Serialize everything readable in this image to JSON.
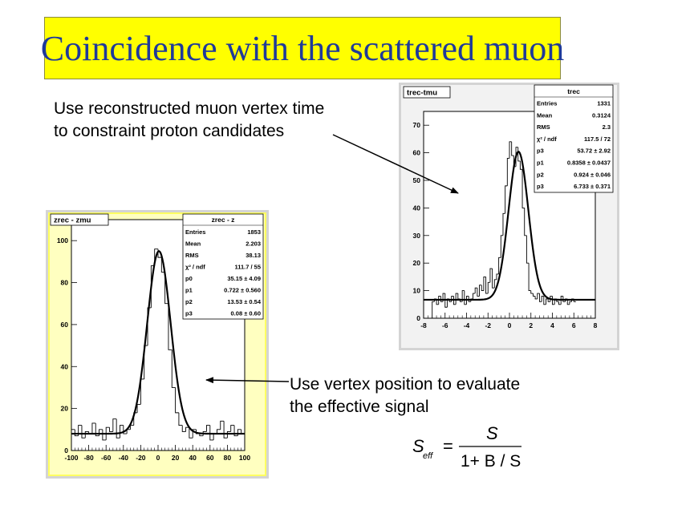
{
  "title": "Coincidence with the scattered muon",
  "note_top": [
    "Use reconstructed muon vertex time",
    "to constraint proton candidates"
  ],
  "note_bottom": [
    "Use vertex position to evaluate",
    "the effective signal"
  ],
  "formula": {
    "lhs": "S",
    "lhs_sub": "eff",
    "eq": "=",
    "numerator": "S",
    "denominator": "1+ B / S"
  },
  "chart_data": [
    {
      "type": "histogram",
      "title": "zrec - zmu",
      "xlim": [
        -100,
        100
      ],
      "ylim": [
        0,
        110
      ],
      "x_ticks": [
        "-100",
        "-80",
        "-60",
        "-40",
        "-20",
        "0",
        "20",
        "40",
        "60",
        "80",
        "100"
      ],
      "y_ticks": [
        "0",
        "20",
        "40",
        "60",
        "80",
        "100"
      ],
      "stats": {
        "name": "zrec - z",
        "rows": [
          {
            "label": "Entries",
            "value": "1853"
          },
          {
            "label": "Mean",
            "value": "2.203"
          },
          {
            "label": "RMS",
            "value": "38.13"
          },
          {
            "label": "χ² / ndf",
            "value": "111.7 / 55"
          },
          {
            "label": "p0",
            "value": "35.15 ± 4.09"
          },
          {
            "label": "p1",
            "value": "0.722 ± 0.560"
          },
          {
            "label": "p2",
            "value": "13.53 ± 0.54"
          },
          {
            "label": "p3",
            "value": "0.08 ± 0.60"
          }
        ]
      },
      "fit": {
        "base": 8,
        "amplitude": 87,
        "mean": 1,
        "sigma": 13.5
      },
      "bin_width": 4,
      "bins_x": [
        -100,
        -96,
        -92,
        -88,
        -84,
        -80,
        -76,
        -72,
        -68,
        -64,
        -60,
        -56,
        -52,
        -48,
        -44,
        -40,
        -36,
        -32,
        -28,
        -24,
        -20,
        -16,
        -12,
        -8,
        -4,
        0,
        4,
        8,
        12,
        16,
        20,
        24,
        28,
        32,
        36,
        40,
        44,
        48,
        52,
        56,
        60,
        64,
        68,
        72,
        76,
        80,
        84,
        88,
        92,
        96
      ],
      "bins_y": [
        10,
        7,
        12,
        6,
        9,
        8,
        13,
        7,
        10,
        5,
        11,
        9,
        15,
        6,
        12,
        8,
        10,
        12,
        18,
        22,
        34,
        50,
        68,
        88,
        96,
        92,
        85,
        70,
        48,
        30,
        18,
        12,
        9,
        11,
        6,
        10,
        8,
        7,
        9,
        12,
        5,
        8,
        10,
        14,
        6,
        9,
        12,
        7,
        10,
        8
      ]
    },
    {
      "type": "histogram",
      "title": "trec-tmu",
      "xlim": [
        -8,
        8
      ],
      "ylim": [
        0,
        75
      ],
      "x_ticks": [
        "-8",
        "-6",
        "-4",
        "-2",
        "0",
        "2",
        "4",
        "6",
        "8"
      ],
      "y_ticks": [
        "0",
        "10",
        "20",
        "30",
        "40",
        "50",
        "60",
        "70"
      ],
      "stats": {
        "name": "trec",
        "rows": [
          {
            "label": "Entries",
            "value": "1331"
          },
          {
            "label": "Mean",
            "value": "0.3124"
          },
          {
            "label": "RMS",
            "value": "2.3"
          },
          {
            "label": "χ² / ndf",
            "value": "117.5 / 72"
          },
          {
            "label": "p3",
            "value": "53.72 ± 2.92"
          },
          {
            "label": "p1",
            "value": "0.8358 ± 0.0437"
          },
          {
            "label": "p2",
            "value": "0.924 ± 0.046"
          },
          {
            "label": "p3",
            "value": "6.733 ± 0.371"
          }
        ]
      },
      "fit": {
        "base": 6.7,
        "amplitude": 53.7,
        "mean": 0.84,
        "sigma": 0.92
      },
      "bin_width": 0.2,
      "bins_x": [
        -7.2,
        -7.0,
        -6.8,
        -6.6,
        -6.4,
        -6.2,
        -6.0,
        -5.8,
        -5.6,
        -5.4,
        -5.2,
        -5.0,
        -4.8,
        -4.6,
        -4.4,
        -4.2,
        -4.0,
        -3.8,
        -3.6,
        -3.4,
        -3.2,
        -3.0,
        -2.8,
        -2.6,
        -2.4,
        -2.2,
        -2.0,
        -1.8,
        -1.6,
        -1.4,
        -1.2,
        -1.0,
        -0.8,
        -0.6,
        -0.4,
        -0.2,
        0.0,
        0.2,
        0.4,
        0.6,
        0.8,
        1.0,
        1.2,
        1.4,
        1.6,
        1.8,
        2.0,
        2.2,
        2.4,
        2.6,
        2.8,
        3.0,
        3.2,
        3.4,
        3.6,
        3.8,
        4.0,
        4.2,
        4.4,
        4.6,
        4.8,
        5.0,
        5.2,
        5.4,
        5.6,
        5.8,
        6.0
      ],
      "bins_y": [
        6,
        7,
        5,
        8,
        6,
        9,
        4,
        7,
        6,
        8,
        5,
        9,
        7,
        6,
        10,
        5,
        8,
        6,
        7,
        9,
        11,
        8,
        12,
        10,
        15,
        9,
        13,
        18,
        11,
        14,
        16,
        22,
        30,
        38,
        48,
        58,
        64,
        59,
        55,
        62,
        57,
        54,
        40,
        30,
        20,
        10,
        9,
        8,
        7,
        9,
        6,
        8,
        5,
        7,
        6,
        8,
        5,
        7,
        6,
        5,
        8,
        6,
        7,
        5,
        6,
        7,
        6
      ]
    }
  ]
}
